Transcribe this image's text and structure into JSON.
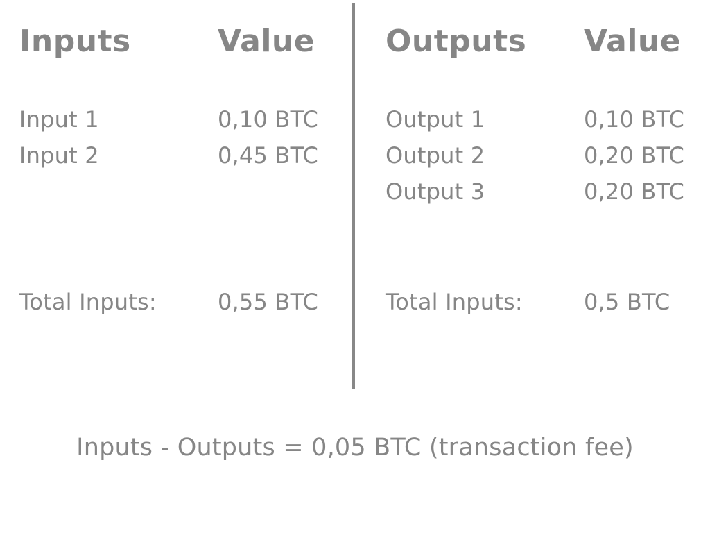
{
  "inputs": {
    "header_label": "Inputs",
    "header_value": "Value",
    "rows": [
      {
        "label": "Input 1",
        "value": "0,10 BTC"
      },
      {
        "label": "Input 2",
        "value": "0,45 BTC"
      }
    ],
    "total_label": "Total Inputs:",
    "total_value": "0,55 BTC"
  },
  "outputs": {
    "header_label": "Outputs",
    "header_value": "Value",
    "rows": [
      {
        "label": "Output 1",
        "value": "0,10 BTC"
      },
      {
        "label": "Output 2",
        "value": "0,20 BTC"
      },
      {
        "label": "Output 3",
        "value": "0,20 BTC"
      }
    ],
    "total_label": "Total Inputs:",
    "total_value": "0,5 BTC"
  },
  "formula": "Inputs - Outputs = 0,05 BTC (transaction fee)",
  "colors": {
    "text": "#868686",
    "divider": "#888888",
    "background": "#ffffff"
  }
}
